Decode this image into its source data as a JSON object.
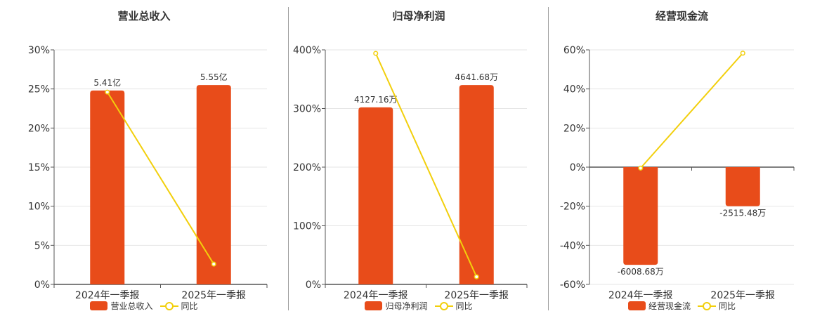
{
  "colors": {
    "bar": "#E84C1A",
    "line": "#F2CF0C",
    "grid": "#e6e6e6",
    "axis": "#555555",
    "text": "#333333"
  },
  "chart_data": [
    {
      "type": "bar",
      "title": "营业总收入",
      "categories": [
        "2024年一季报",
        "2025年一季报"
      ],
      "series": [
        {
          "name": "营业总收入",
          "type": "bar",
          "values": [
            24.8,
            25.5
          ],
          "labels": [
            "5.41亿",
            "5.55亿"
          ]
        },
        {
          "name": "同比",
          "type": "line",
          "values": [
            24.6,
            2.6
          ]
        }
      ],
      "yticks": [
        "0%",
        "5%",
        "10%",
        "15%",
        "20%",
        "25%",
        "30%"
      ],
      "ylim": [
        0,
        30
      ],
      "legend": "bottom"
    },
    {
      "type": "bar",
      "title": "归母净利润",
      "categories": [
        "2024年一季报",
        "2025年一季报"
      ],
      "series": [
        {
          "name": "归母净利润",
          "type": "bar",
          "values": [
            302,
            340
          ],
          "labels": [
            "4127.16万",
            "4641.68万"
          ]
        },
        {
          "name": "同比",
          "type": "line",
          "values": [
            394,
            13
          ]
        }
      ],
      "yticks": [
        "0%",
        "100%",
        "200%",
        "300%",
        "400%"
      ],
      "ylim": [
        0,
        400
      ],
      "legend": "bottom"
    },
    {
      "type": "bar",
      "title": "经营现金流",
      "categories": [
        "2024年一季报",
        "2025年一季报"
      ],
      "series": [
        {
          "name": "经营现金流",
          "type": "bar",
          "values": [
            -50,
            -20
          ],
          "labels": [
            "-6008.68万",
            "-2515.48万"
          ]
        },
        {
          "name": "同比",
          "type": "line",
          "values": [
            -0.5,
            58.3
          ]
        }
      ],
      "yticks": [
        "-60%",
        "-40%",
        "-20%",
        "0%",
        "20%",
        "40%",
        "60%"
      ],
      "ylim": [
        -60,
        60
      ],
      "legend": "bottom"
    }
  ]
}
